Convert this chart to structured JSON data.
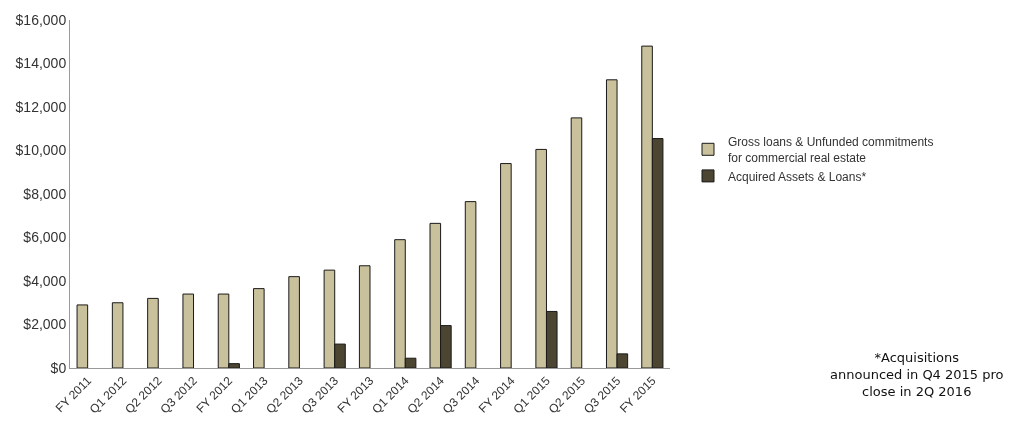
{
  "chart_data": {
    "type": "bar",
    "categories": [
      "FY 2011",
      "Q1 2012",
      "Q2 2012",
      "Q3 2012",
      "FY 2012",
      "Q1 2013",
      "Q2 2013",
      "Q3 2013",
      "FY 2013",
      "Q1 2014",
      "Q2 2014",
      "Q3 2014",
      "FY 2014",
      "Q1 2015",
      "Q2 2015",
      "Q3 2015",
      "FY 2015"
    ],
    "series": [
      {
        "name": "Gross loans & Unfunded commitments for commercial real estate",
        "color": "#c9c09c",
        "values": [
          2900,
          3000,
          3200,
          3400,
          3400,
          3650,
          4200,
          4500,
          4700,
          5900,
          6650,
          7650,
          9400,
          10050,
          11500,
          13250,
          14800
        ]
      },
      {
        "name": "Acquired Assets & Loans*",
        "color": "#4b4532",
        "values": [
          null,
          null,
          null,
          null,
          200,
          null,
          null,
          1100,
          null,
          450,
          1950,
          null,
          null,
          2600,
          null,
          650,
          10550
        ]
      }
    ],
    "ylim": [
      0,
      16000
    ],
    "yticks": [
      {
        "value": 0,
        "label": "$0"
      },
      {
        "value": 2000,
        "label": "$2,000"
      },
      {
        "value": 4000,
        "label": "$4,000"
      },
      {
        "value": 6000,
        "label": "$6,000"
      },
      {
        "value": 8000,
        "label": "$8,000"
      },
      {
        "value": 10000,
        "label": "$10,000"
      },
      {
        "value": 12000,
        "label": "$12,000"
      },
      {
        "value": 14000,
        "label": "$14,000"
      },
      {
        "value": 16000,
        "label": "$16,000"
      }
    ],
    "grid": false,
    "legend": "right",
    "annotations": [
      "*Acquisitions\nannounced in Q4 2015 pro\nclose in 2Q 2016"
    ]
  }
}
